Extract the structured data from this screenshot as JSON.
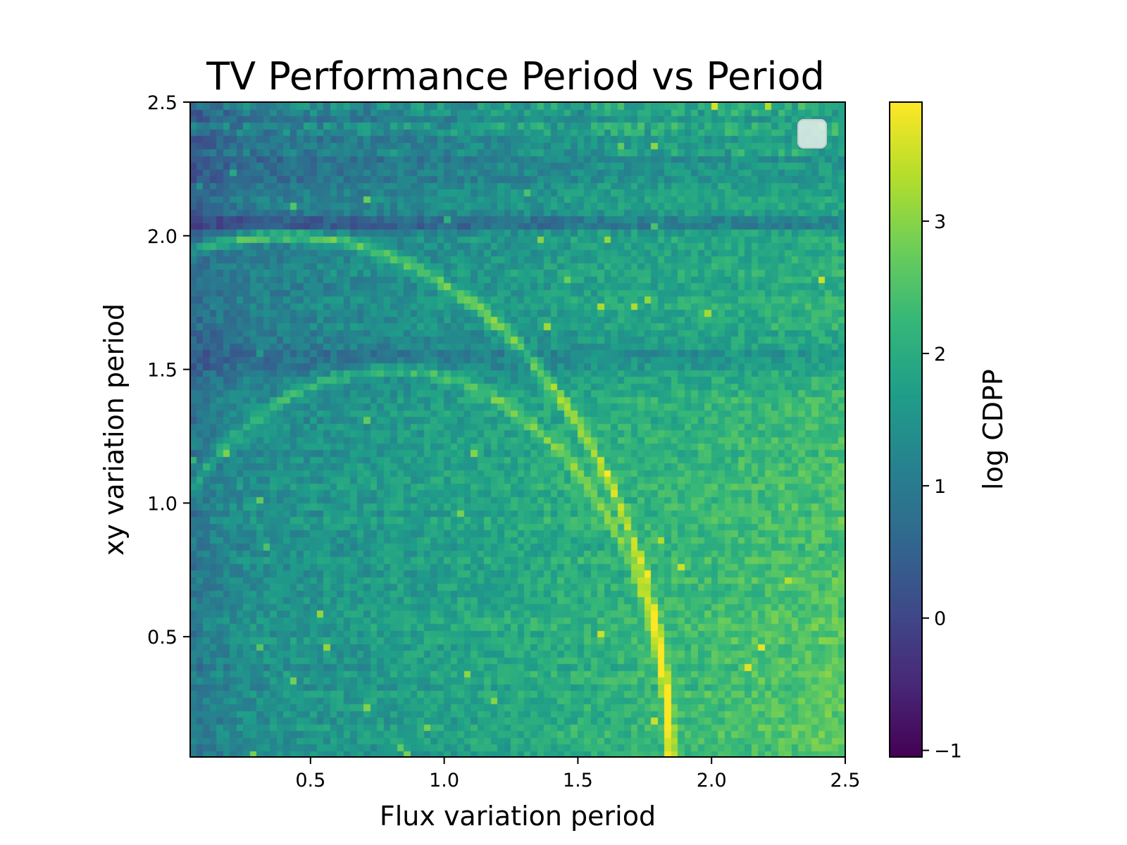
{
  "chart_data": {
    "type": "heatmap",
    "title": "TV Performance Period vs Period",
    "xlabel": "Flux variation period",
    "ylabel": "xy variation period",
    "colorbar_label": "log CDPP",
    "colormap": "viridis",
    "xlim": [
      0.05,
      2.5
    ],
    "ylim": [
      0.05,
      2.5
    ],
    "zlim": [
      -1.05,
      3.9
    ],
    "xticks": [
      {
        "value": 0.5,
        "label": "0.5"
      },
      {
        "value": 1.0,
        "label": "1.0"
      },
      {
        "value": 1.5,
        "label": "1.5"
      },
      {
        "value": 2.0,
        "label": "2.0"
      },
      {
        "value": 2.5,
        "label": "2.5"
      }
    ],
    "yticks": [
      {
        "value": 0.5,
        "label": "0.5"
      },
      {
        "value": 1.0,
        "label": "1.0"
      },
      {
        "value": 1.5,
        "label": "1.5"
      },
      {
        "value": 2.0,
        "label": "2.0"
      },
      {
        "value": 2.5,
        "label": "2.5"
      }
    ],
    "colorbar_ticks": [
      {
        "value": -1,
        "label": "−1"
      },
      {
        "value": 0,
        "label": "0"
      },
      {
        "value": 1,
        "label": "1"
      },
      {
        "value": 2,
        "label": "2"
      },
      {
        "value": 3,
        "label": "3"
      }
    ],
    "grid": {
      "nx": 98,
      "ny": 98
    },
    "features": {
      "background_trend": "log CDPP increases from about 1.2 at small flux period to about 3.2 at large flux and small xy period",
      "arcs": [
        {
          "description": "bright arc of radius ~2.0 around origin (flux period 0.4 at bottom to 1.85 at xy 2.0)",
          "radius": 2.0,
          "value": 3.7
        },
        {
          "description": "bright arc of radius ~1.5 centered at flux 2.3 (flux 0.8 at bottom to 1.85 at xy 1.5)",
          "radius": 1.5,
          "value": 3.7
        }
      ],
      "dark_bands": [
        {
          "xy_period": 2.05,
          "value": 0.9
        },
        {
          "xy_period": 1.55,
          "value": 1.2
        },
        {
          "xy_period": 2.35,
          "value": 1.4
        }
      ]
    },
    "legend": "top-right (empty)"
  }
}
